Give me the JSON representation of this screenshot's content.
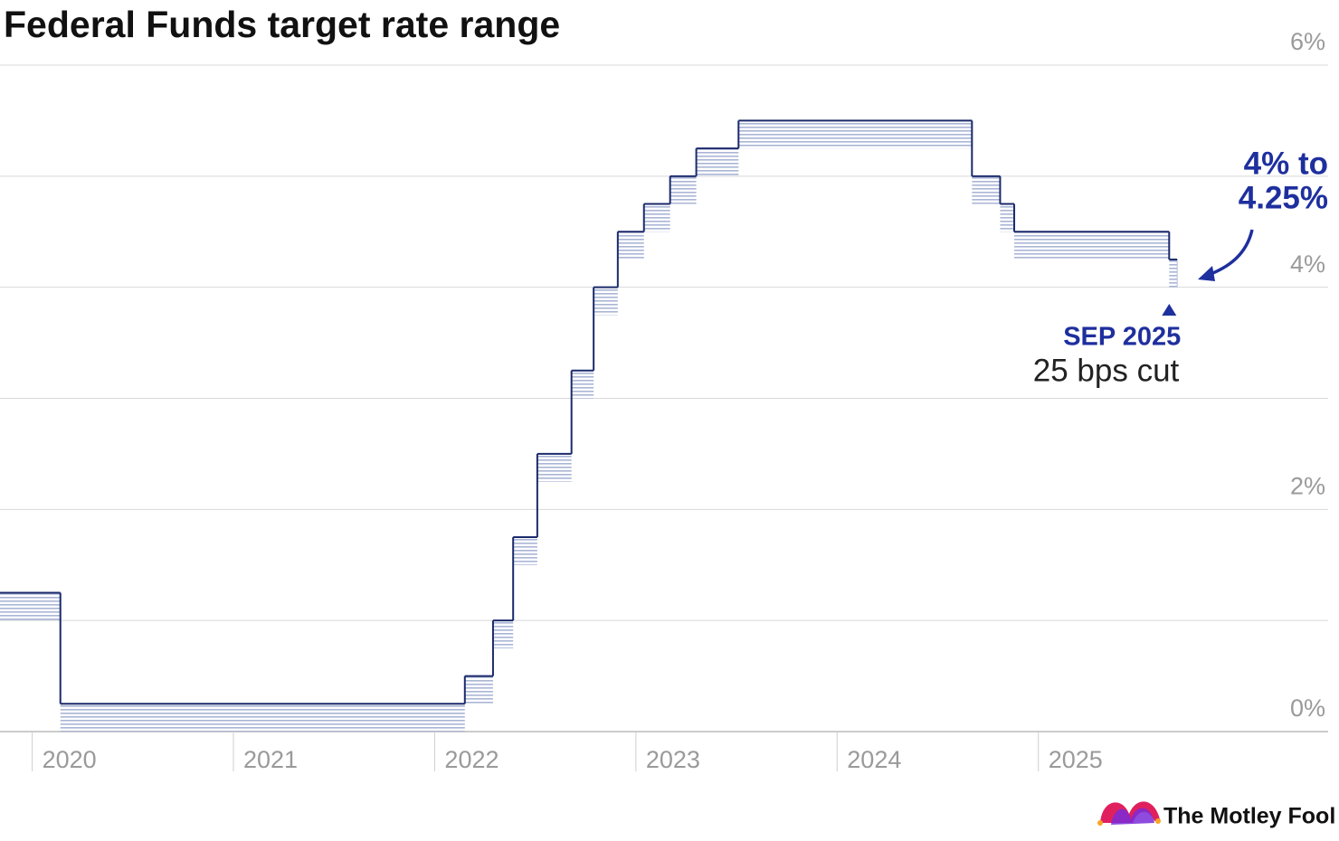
{
  "chart_data": {
    "type": "step-range",
    "title": "Federal Funds target rate range",
    "x": [
      2019.84,
      2020.14,
      2022.15,
      2022.29,
      2022.39,
      2022.51,
      2022.68,
      2022.79,
      2022.91,
      2023.04,
      2023.17,
      2023.3,
      2023.51,
      2024.67,
      2024.81,
      2024.88,
      2025.65,
      2025.69
    ],
    "series": [
      {
        "name": "upper",
        "color": "#1b2a6b",
        "values": [
          1.25,
          0.25,
          0.5,
          1.0,
          1.75,
          2.5,
          3.25,
          4.0,
          4.5,
          4.75,
          5.0,
          5.25,
          5.5,
          5.0,
          4.75,
          4.5,
          4.25,
          4.25
        ]
      },
      {
        "name": "lower",
        "color": "#b3bddb",
        "values": [
          1.0,
          0,
          0.25,
          0.75,
          1.5,
          2.25,
          3.0,
          3.75,
          4.25,
          4.5,
          4.75,
          5.0,
          5.25,
          4.75,
          4.5,
          4.25,
          4.0,
          4.0
        ]
      }
    ],
    "xlim": [
      2019.84,
      2026.44
    ],
    "xticks": [
      2020,
      2021,
      2022,
      2023,
      2024,
      2025
    ],
    "ylim": [
      0,
      6
    ],
    "yticks": [
      {
        "value": 0,
        "label": "0%"
      },
      {
        "value": 2,
        "label": "2%"
      },
      {
        "value": 4,
        "label": "4%"
      },
      {
        "value": 6,
        "label": "6%"
      }
    ],
    "yminor": [
      1,
      3,
      5
    ],
    "grid": true,
    "callout": [
      "4% to",
      "4.25%"
    ],
    "event_label": "SEP 2025",
    "event_note": "25 bps cut",
    "event_x": 2025.65,
    "source": "The Motley Fool"
  }
}
